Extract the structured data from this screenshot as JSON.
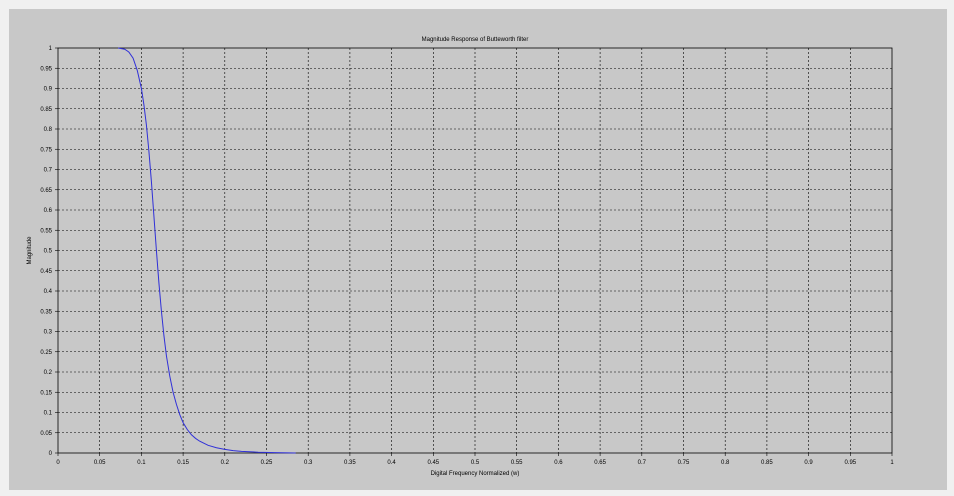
{
  "chart_data": {
    "type": "line",
    "title": "Magnitude Response of Butteworth filter",
    "xlabel": "Digital Frequency  Normalized (w)",
    "ylabel": "Magnitude",
    "xlim": [
      0,
      1
    ],
    "ylim": [
      0,
      1
    ],
    "grid": true,
    "x_ticks": [
      "0",
      "0.05",
      "0.1",
      "0.15",
      "0.2",
      "0.25",
      "0.3",
      "0.35",
      "0.4",
      "0.45",
      "0.5",
      "0.55",
      "0.6",
      "0.65",
      "0.7",
      "0.75",
      "0.8",
      "0.85",
      "0.9",
      "0.95",
      "1"
    ],
    "y_ticks": [
      "0",
      "0.05",
      "0.1",
      "0.15",
      "0.2",
      "0.25",
      "0.3",
      "0.35",
      "0.4",
      "0.45",
      "0.5",
      "0.55",
      "0.6",
      "0.65",
      "0.7",
      "0.75",
      "0.8",
      "0.85",
      "0.9",
      "0.95",
      "1"
    ],
    "colors": {
      "background": "#c8c8c8",
      "line": "#3030d8",
      "grid": "#000000"
    },
    "series": [
      {
        "x": [
          0.072,
          0.08,
          0.085,
          0.09,
          0.095,
          0.1,
          0.103,
          0.106,
          0.109,
          0.112,
          0.115,
          0.118,
          0.121,
          0.124,
          0.127,
          0.13,
          0.134,
          0.138,
          0.142,
          0.146,
          0.15,
          0.155,
          0.16,
          0.165,
          0.17,
          0.18,
          0.19,
          0.2,
          0.21,
          0.22,
          0.24,
          0.26,
          0.285
        ],
        "y": [
          1.0,
          0.997,
          0.99,
          0.975,
          0.945,
          0.9,
          0.86,
          0.81,
          0.745,
          0.67,
          0.585,
          0.5,
          0.42,
          0.35,
          0.29,
          0.24,
          0.19,
          0.15,
          0.12,
          0.095,
          0.075,
          0.058,
          0.045,
          0.036,
          0.029,
          0.019,
          0.013,
          0.009,
          0.006,
          0.004,
          0.002,
          0.001,
          0.0
        ]
      }
    ]
  }
}
